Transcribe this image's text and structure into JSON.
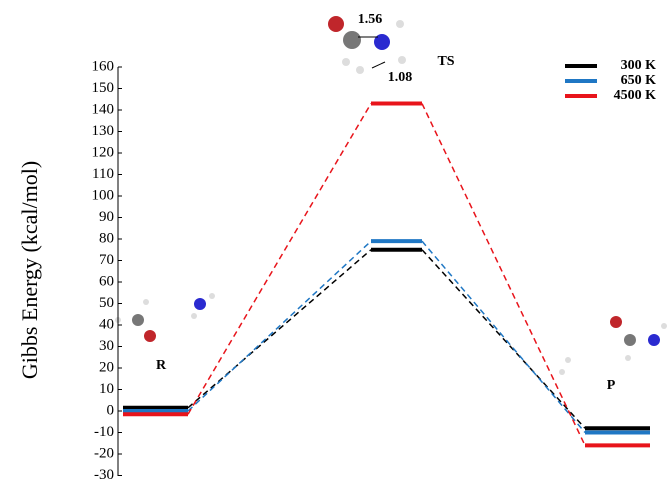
{
  "chart_data": {
    "type": "profile",
    "ylabel": "Gibbs Energy (kcal/mol)",
    "categories": [
      "R",
      "TS",
      "P"
    ],
    "series": [
      {
        "name": "300 K",
        "color": "#000000",
        "values": [
          1.5,
          75,
          -8
        ]
      },
      {
        "name": "650 K",
        "color": "#1f77c4",
        "values": [
          0,
          79,
          -10
        ]
      },
      {
        "name": "4500 K",
        "color": "#e8141b",
        "values": [
          -1.5,
          143,
          -16
        ]
      }
    ],
    "ylim": [
      -30,
      160
    ],
    "yticks": [
      -30,
      -20,
      -10,
      0,
      10,
      20,
      30,
      40,
      50,
      60,
      70,
      80,
      90,
      100,
      110,
      120,
      130,
      140,
      150,
      160
    ],
    "annotations": [
      "1.56",
      "1.08"
    ],
    "legend": "upper right"
  }
}
